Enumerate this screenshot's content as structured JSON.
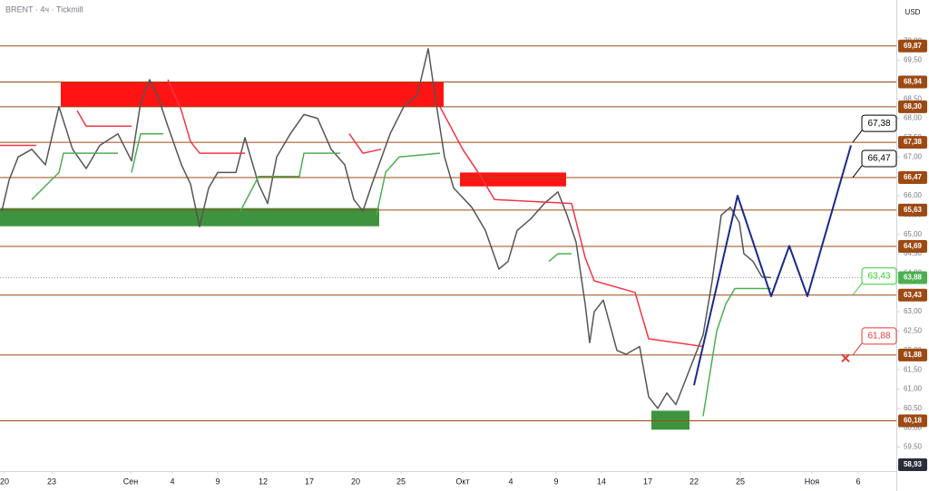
{
  "header": {
    "title": "BRENT · 4ч · Tickmill",
    "currency": "USD"
  },
  "chart_data": {
    "type": "line",
    "xlim": [
      0,
      98.8
    ],
    "ylim": [
      58.88,
      71.06
    ],
    "xticks": [
      {
        "value": 0.5,
        "label": "20"
      },
      {
        "value": 5.7,
        "label": "23"
      },
      {
        "value": 14.4,
        "label": "Сен"
      },
      {
        "value": 19,
        "label": "4"
      },
      {
        "value": 24,
        "label": "9"
      },
      {
        "value": 29,
        "label": "12"
      },
      {
        "value": 34.1,
        "label": "17"
      },
      {
        "value": 39.2,
        "label": "20"
      },
      {
        "value": 44.2,
        "label": "25"
      },
      {
        "value": 51,
        "label": "Окт"
      },
      {
        "value": 56.3,
        "label": "4"
      },
      {
        "value": 61.3,
        "label": "9"
      },
      {
        "value": 66.3,
        "label": "14"
      },
      {
        "value": 71.4,
        "label": "17"
      },
      {
        "value": 76.5,
        "label": "22"
      },
      {
        "value": 81.6,
        "label": "25"
      },
      {
        "value": 89.5,
        "label": "Ноя"
      },
      {
        "value": 94.6,
        "label": "6"
      }
    ],
    "yticks": [
      {
        "value": 59.5,
        "label": "59,50"
      },
      {
        "value": 60,
        "label": "60,00"
      },
      {
        "value": 60.5,
        "label": "60,50"
      },
      {
        "value": 61,
        "label": "61,00"
      },
      {
        "value": 61.5,
        "label": "61,50"
      },
      {
        "value": 62,
        "label": "62,00"
      },
      {
        "value": 62.5,
        "label": "62,50"
      },
      {
        "value": 63,
        "label": "63,00"
      },
      {
        "value": 63.5,
        "label": "63,50"
      },
      {
        "value": 64,
        "label": "64,00"
      },
      {
        "value": 64.5,
        "label": "64,50"
      },
      {
        "value": 65,
        "label": "65,00"
      },
      {
        "value": 65.5,
        "label": "65,50"
      },
      {
        "value": 66,
        "label": "66,00"
      },
      {
        "value": 66.5,
        "label": "66,50"
      },
      {
        "value": 67,
        "label": "67,00"
      },
      {
        "value": 67.5,
        "label": "67,50"
      },
      {
        "value": 68,
        "label": "68,00"
      },
      {
        "value": 68.5,
        "label": "68,50"
      },
      {
        "value": 69,
        "label": "69,00"
      },
      {
        "value": 69.5,
        "label": "69,50"
      },
      {
        "value": 70,
        "label": "70,00"
      }
    ],
    "series": [
      {
        "color": "#555555",
        "x": [
          0.2,
          1,
          2,
          3.5,
          5,
          6.5,
          8,
          9.5,
          11,
          13,
          14.5,
          15.5,
          16.5,
          17.5,
          18.5,
          20,
          21,
          22,
          23,
          24,
          26,
          27,
          28.5,
          29.5,
          30.5,
          32,
          33.5,
          35,
          36.5,
          38,
          39,
          40,
          41,
          43,
          44.5,
          46,
          47.2,
          48,
          49,
          50,
          52,
          53.5,
          55,
          56,
          57,
          58.5,
          60,
          61.5,
          62.5,
          63.5,
          64.5,
          65,
          65.5,
          66.5,
          68,
          69,
          70.5,
          71.5,
          72.5,
          73.5,
          74.5,
          75.5,
          76.5,
          77.5,
          78.5,
          79.5,
          80.5,
          81.5,
          82,
          83,
          84,
          85
        ],
        "values": [
          65.6,
          66.4,
          67,
          67.2,
          66.8,
          68.3,
          67.2,
          66.7,
          67.3,
          67.6,
          66.9,
          68.4,
          69,
          68.5,
          67.8,
          66.8,
          66.3,
          65.2,
          66.2,
          66.6,
          66.6,
          67.5,
          66.3,
          65.8,
          67,
          67.6,
          68.1,
          68,
          67.2,
          66.8,
          65.9,
          65.6,
          66.3,
          67.6,
          68.3,
          68.6,
          69.8,
          68.5,
          67,
          66.2,
          65.7,
          65.1,
          64.1,
          64.3,
          65.1,
          65.4,
          65.8,
          66.1,
          65.5,
          64.8,
          63.2,
          62.2,
          63,
          63.3,
          62,
          61.9,
          62.1,
          60.8,
          60.5,
          60.9,
          60.6,
          61.2,
          61.8,
          62.4,
          63.8,
          65.5,
          65.7,
          65.3,
          64.5,
          64.3,
          63.9,
          63.88
        ]
      },
      {
        "color": "#f23645",
        "x": [
          0,
          4
        ],
        "values": [
          67.3,
          67.3
        ]
      },
      {
        "color": "#f23645",
        "x": [
          8.5,
          9.5,
          14.5
        ],
        "values": [
          68.2,
          67.8,
          67.8
        ]
      },
      {
        "color": "#f23645",
        "x": [
          18.5,
          20,
          21,
          22,
          27
        ],
        "values": [
          69,
          68.2,
          67.4,
          67.1,
          67.1
        ]
      },
      {
        "color": "#f23645",
        "x": [
          38.5,
          40,
          42
        ],
        "values": [
          67.6,
          67.1,
          67.2
        ]
      },
      {
        "color": "#f23645",
        "x": [
          48.5,
          51,
          53,
          54.5,
          63,
          64.5,
          65.5,
          70,
          71.5,
          77.5
        ],
        "values": [
          68.3,
          67.2,
          66.5,
          65.9,
          65.8,
          64.4,
          63.8,
          63.5,
          62.3,
          62.1
        ]
      },
      {
        "color": "#4caf50",
        "x": [
          3.5,
          6.5,
          7,
          13
        ],
        "values": [
          65.9,
          66.6,
          67.1,
          67.1
        ]
      },
      {
        "color": "#4caf50",
        "x": [
          14.5,
          15.5,
          18
        ],
        "values": [
          66.6,
          67.6,
          67.6
        ]
      },
      {
        "color": "#4caf50",
        "x": [
          26.5,
          28.5,
          33,
          33.5,
          37.5
        ],
        "values": [
          65.6,
          66.5,
          66.5,
          67.1,
          67.1
        ]
      },
      {
        "color": "#4caf50",
        "x": [
          41.5,
          42.5,
          44,
          48.5
        ],
        "values": [
          65.5,
          66.6,
          67,
          67.1
        ]
      },
      {
        "color": "#4caf50",
        "x": [
          60.5,
          61.5,
          63
        ],
        "values": [
          64.3,
          64.5,
          64.5
        ]
      },
      {
        "color": "#4caf50",
        "x": [
          77.5,
          79,
          80,
          81,
          85
        ],
        "values": [
          60.3,
          62.5,
          63.2,
          63.6,
          63.6
        ]
      },
      {
        "color": "#1a2a8a",
        "x": [
          76.5,
          81.3,
          85,
          87,
          89,
          93.8
        ],
        "values": [
          61.1,
          66,
          63.4,
          64.7,
          63.4,
          67.3
        ]
      }
    ],
    "zones": [
      {
        "color": "#ff0000",
        "x": [
          6.7,
          48.9
        ],
        "y": [
          68.3,
          68.94
        ]
      },
      {
        "color": "#ff0000",
        "x": [
          50.7,
          62.4
        ],
        "y": [
          66.24,
          66.6
        ]
      },
      {
        "color": "#2e8b2e",
        "x": [
          0,
          41.8
        ],
        "y": [
          65.21,
          65.68
        ]
      },
      {
        "color": "#2e8b2e",
        "x": [
          71.8,
          76
        ],
        "y": [
          59.95,
          60.44
        ]
      }
    ],
    "levels": [
      {
        "value": 69.87,
        "label": "69,87"
      },
      {
        "value": 68.94,
        "label": "68,94"
      },
      {
        "value": 68.3,
        "label": "68,30"
      },
      {
        "value": 67.38,
        "label": "67,38"
      },
      {
        "value": 66.47,
        "label": "66,47"
      },
      {
        "value": 65.63,
        "label": "65,63"
      },
      {
        "value": 64.69,
        "label": "64,69"
      },
      {
        "value": 63.43,
        "label": "63,43"
      },
      {
        "value": 61.88,
        "label": "61,88"
      },
      {
        "value": 60.18,
        "label": "60,18"
      }
    ],
    "level_color": "#9c4a14",
    "last_price": {
      "value": 63.88,
      "label": "63,88",
      "color": "#4caf50"
    },
    "low_marker": {
      "value": 58.93,
      "label": "58,93",
      "color": "#2a2e39"
    },
    "callouts": [
      {
        "value": 67.38,
        "label": "67,38",
        "color": "#000000"
      },
      {
        "value": 66.47,
        "label": "66,47",
        "color": "#000000"
      },
      {
        "value": 63.43,
        "label": "63,43",
        "color": "#33cc33"
      },
      {
        "value": 61.88,
        "label": "61,88",
        "color": "#e53935"
      }
    ],
    "stop_mark": {
      "x": 93.2,
      "y": 61.8,
      "color": "#e53935"
    }
  }
}
